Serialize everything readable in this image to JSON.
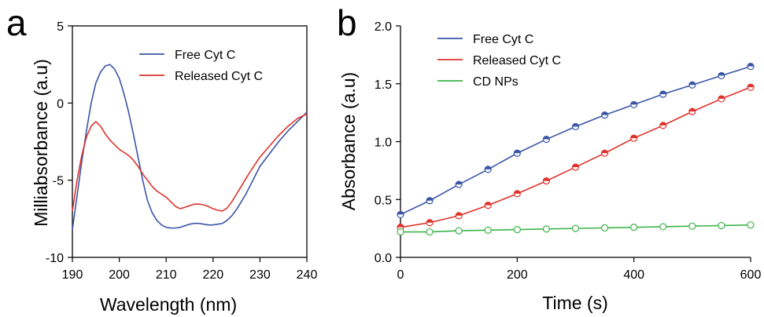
{
  "chart_data": [
    {
      "panel_label": "a",
      "type": "line",
      "xlabel": "Wavelength (nm)",
      "ylabel": "Milliabsorbance (a.u)",
      "xlim": [
        190,
        240
      ],
      "ylim": [
        -10,
        5
      ],
      "xticks": [
        190,
        200,
        210,
        220,
        230,
        240
      ],
      "yticks": [
        -10,
        -5,
        0,
        5
      ],
      "legend_position": "top-right",
      "series": [
        {
          "name": "Free Cyt C",
          "color": "#3a55a6",
          "x": [
            190,
            191,
            192,
            193,
            194,
            195,
            196,
            197,
            198,
            199,
            200,
            201,
            202,
            203,
            204,
            205,
            206,
            207,
            208,
            209,
            210,
            211,
            212,
            213,
            214,
            215,
            216,
            217,
            218,
            219,
            220,
            221,
            222,
            223,
            224,
            225,
            226,
            227,
            228,
            229,
            230,
            232,
            234,
            236,
            238,
            240
          ],
          "y": [
            -8.2,
            -6.0,
            -3.8,
            -1.8,
            0.0,
            1.3,
            2.0,
            2.4,
            2.5,
            2.2,
            1.6,
            0.6,
            -0.6,
            -2.0,
            -3.5,
            -5.0,
            -6.3,
            -7.1,
            -7.6,
            -7.9,
            -8.05,
            -8.1,
            -8.1,
            -8.05,
            -7.95,
            -7.85,
            -7.8,
            -7.8,
            -7.85,
            -7.9,
            -7.9,
            -7.85,
            -7.8,
            -7.6,
            -7.3,
            -6.9,
            -6.4,
            -5.9,
            -5.3,
            -4.7,
            -4.1,
            -3.3,
            -2.5,
            -1.8,
            -1.2,
            -0.6
          ]
        },
        {
          "name": "Released Cyt C",
          "color": "#e0322b",
          "x": [
            190,
            191,
            192,
            193,
            194,
            195,
            196,
            197,
            198,
            199,
            200,
            201,
            202,
            203,
            204,
            205,
            206,
            207,
            208,
            209,
            210,
            211,
            212,
            213,
            214,
            215,
            216,
            217,
            218,
            219,
            220,
            221,
            222,
            223,
            224,
            225,
            226,
            227,
            228,
            229,
            230,
            232,
            234,
            236,
            238,
            240
          ],
          "y": [
            -7.0,
            -5.0,
            -3.4,
            -2.2,
            -1.5,
            -1.2,
            -1.5,
            -2.0,
            -2.4,
            -2.7,
            -3.0,
            -3.2,
            -3.4,
            -3.7,
            -4.1,
            -4.6,
            -5.0,
            -5.4,
            -5.7,
            -5.9,
            -6.1,
            -6.4,
            -6.7,
            -6.85,
            -6.75,
            -6.65,
            -6.55,
            -6.55,
            -6.6,
            -6.7,
            -6.85,
            -6.95,
            -7.0,
            -6.8,
            -6.4,
            -5.9,
            -5.4,
            -4.9,
            -4.4,
            -3.95,
            -3.5,
            -2.8,
            -2.1,
            -1.5,
            -1.0,
            -0.7
          ]
        }
      ]
    },
    {
      "panel_label": "b",
      "type": "line",
      "xlabel": "Time (s)",
      "ylabel": "Absorbance (a.u)",
      "xlim": [
        0,
        600
      ],
      "ylim": [
        0.0,
        2.0
      ],
      "xticks": [
        0,
        200,
        400,
        600
      ],
      "yticks": [
        "0.0",
        "0.5",
        "1.0",
        "1.5",
        "2.0"
      ],
      "legend_position": "top-left",
      "markers": "half-filled circles",
      "series": [
        {
          "name": "Free Cyt C",
          "color": "#3a55a6",
          "x": [
            0,
            50,
            100,
            150,
            200,
            250,
            300,
            350,
            400,
            450,
            500,
            550,
            600
          ],
          "y": [
            0.37,
            0.49,
            0.63,
            0.76,
            0.9,
            1.02,
            1.13,
            1.23,
            1.32,
            1.41,
            1.49,
            1.57,
            1.65
          ]
        },
        {
          "name": "Released Cyt C",
          "color": "#e0322b",
          "x": [
            0,
            50,
            100,
            150,
            200,
            250,
            300,
            350,
            400,
            450,
            500,
            550,
            600
          ],
          "y": [
            0.26,
            0.3,
            0.36,
            0.45,
            0.55,
            0.66,
            0.78,
            0.9,
            1.03,
            1.14,
            1.26,
            1.37,
            1.47
          ]
        },
        {
          "name": "CD NPs",
          "color": "#3cb44b",
          "x": [
            0,
            50,
            100,
            150,
            200,
            250,
            300,
            350,
            400,
            450,
            500,
            550,
            600
          ],
          "y": [
            0.22,
            0.22,
            0.23,
            0.235,
            0.24,
            0.245,
            0.25,
            0.255,
            0.26,
            0.265,
            0.27,
            0.275,
            0.28
          ]
        }
      ]
    }
  ]
}
